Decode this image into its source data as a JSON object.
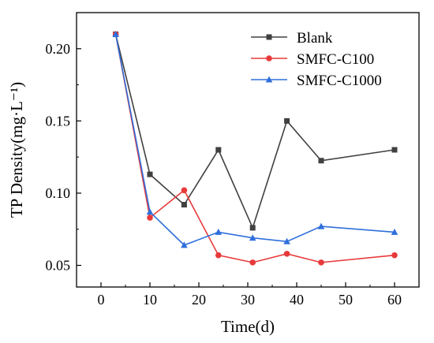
{
  "chart_data": {
    "type": "line",
    "title": "",
    "xlabel": "Time(d)",
    "ylabel": "TP Density(mg·L⁻¹)",
    "xlim": [
      -5,
      65
    ],
    "ylim": [
      0.035,
      0.225
    ],
    "x_ticks": [
      0,
      10,
      20,
      30,
      40,
      50,
      60
    ],
    "x_tick_labels": [
      "0",
      "10",
      "20",
      "30",
      "40",
      "50",
      "60"
    ],
    "y_ticks": [
      0.05,
      0.1,
      0.15,
      0.2
    ],
    "y_tick_labels": [
      "0.05",
      "0.10",
      "0.15",
      "0.20"
    ],
    "grid": false,
    "legend_position": "top-right",
    "x": [
      3,
      10,
      17,
      24,
      31,
      38,
      45,
      60
    ],
    "series": [
      {
        "name": "Blank",
        "color": "#404040",
        "marker": "square",
        "values": [
          0.21,
          0.113,
          0.092,
          0.13,
          0.076,
          0.15,
          0.1225,
          0.13
        ]
      },
      {
        "name": "SMFC-C100",
        "color": "#e8393a",
        "marker": "circle",
        "values": [
          0.21,
          0.083,
          0.102,
          0.057,
          0.052,
          0.058,
          0.052,
          0.057
        ]
      },
      {
        "name": "SMFC-C1000",
        "color": "#2f6fdc",
        "marker": "triangle",
        "values": [
          0.21,
          0.087,
          0.064,
          0.073,
          0.069,
          0.0665,
          0.077,
          0.073
        ]
      }
    ]
  }
}
